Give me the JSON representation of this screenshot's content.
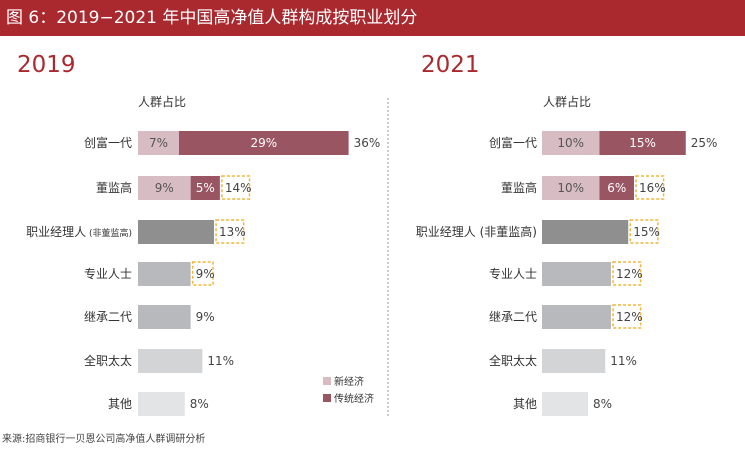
{
  "title": "图 6：2019−2021 年中国高净值人群构成按职业划分",
  "source": "来源:招商银行一贝恩公司高净值人群调研分析",
  "colors": {
    "title_bg": "#a9292f",
    "year": "#a9292f",
    "new_economy": "#d8bcc4",
    "traditional_economy": "#9a5562",
    "professional_manager": "#8f8f90",
    "gray_mid": "#b8b9bc",
    "gray_light": "#d3d4d6",
    "gray_lightest": "#e3e4e5",
    "highlight_dash": "#f0b73b"
  },
  "chart_data": [
    {
      "type": "bar",
      "year_label": "2019",
      "subtitle": "人群占比",
      "categories": [
        "创富一代",
        "董监高",
        "职业经理人",
        "专业人士",
        "继承二代",
        "全职太太",
        "其他"
      ],
      "category_suffixes": [
        "",
        "",
        "(非董监高)",
        "",
        "",
        "",
        ""
      ],
      "series": [
        {
          "name": "新经济",
          "values": [
            7,
            9,
            null,
            null,
            null,
            null,
            null
          ]
        },
        {
          "name": "传统经济",
          "values": [
            29,
            5,
            null,
            null,
            null,
            null,
            null
          ]
        }
      ],
      "totals": [
        36,
        14,
        13,
        9,
        9,
        11,
        8
      ],
      "segment_labels": [
        [
          "7%",
          "29%"
        ],
        [
          "9%",
          "5%"
        ],
        [],
        [],
        [],
        [],
        []
      ],
      "total_labels": [
        "36%",
        "14%",
        "13%",
        "9%",
        "9%",
        "11%",
        "8%"
      ],
      "highlighted": [
        false,
        true,
        true,
        true,
        false,
        false,
        false
      ]
    },
    {
      "type": "bar",
      "year_label": "2021",
      "subtitle": "人群占比",
      "categories": [
        "创富一代",
        "董监高",
        "职业经理人",
        "专业人士",
        "继承二代",
        "全职太太",
        "其他"
      ],
      "category_suffixes": [
        "",
        "",
        "(非董监高)",
        "",
        "",
        "",
        ""
      ],
      "series": [
        {
          "name": "新经济",
          "values": [
            10,
            10,
            null,
            null,
            null,
            null,
            null
          ]
        },
        {
          "name": "传统经济",
          "values": [
            15,
            6,
            null,
            null,
            null,
            null,
            null
          ]
        }
      ],
      "totals": [
        25,
        16,
        15,
        12,
        12,
        11,
        8
      ],
      "segment_labels": [
        [
          "10%",
          "15%"
        ],
        [
          "10%",
          "6%"
        ],
        [],
        [],
        [],
        [],
        []
      ],
      "total_labels": [
        "25%",
        "16%",
        "15%",
        "12%",
        "12%",
        "11%",
        "8%"
      ],
      "highlighted": [
        false,
        true,
        true,
        true,
        true,
        false,
        false
      ]
    }
  ],
  "legend": {
    "items": [
      {
        "label": "新经济",
        "color_key": "new_economy"
      },
      {
        "label": "传统经济",
        "color_key": "traditional_economy"
      }
    ]
  }
}
